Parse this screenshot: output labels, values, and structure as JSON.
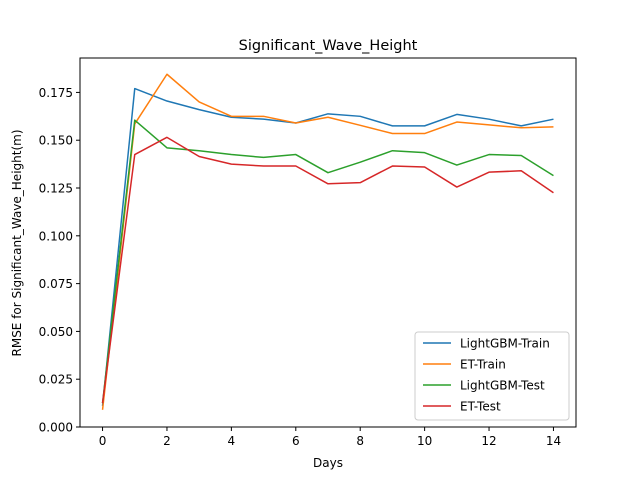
{
  "chart_data": {
    "type": "line",
    "title": "Significant_Wave_Height",
    "xlabel": "Days",
    "ylabel": "RMSE for Significant_Wave_Height(m)",
    "xlim": [
      -0.7,
      14.7
    ],
    "ylim": [
      0,
      0.193
    ],
    "xticks": [
      0,
      2,
      4,
      6,
      8,
      10,
      12,
      14
    ],
    "xtick_labels": [
      "0",
      "2",
      "4",
      "6",
      "8",
      "10",
      "12",
      "14"
    ],
    "yticks": [
      0,
      0.025,
      0.05,
      0.075,
      0.1,
      0.125,
      0.15,
      0.175
    ],
    "ytick_labels": [
      "0.000",
      "0.025",
      "0.050",
      "0.075",
      "0.100",
      "0.125",
      "0.150",
      "0.175"
    ],
    "grid": false,
    "legend_position": "lower-right",
    "x": [
      0,
      1,
      2,
      3,
      4,
      5,
      6,
      7,
      8,
      9,
      10,
      11,
      12,
      13,
      14
    ],
    "series": [
      {
        "name": "LightGBM-Train",
        "color": "#1f77b4",
        "values": [
          0.011,
          0.177,
          0.1705,
          0.166,
          0.162,
          0.161,
          0.159,
          0.1638,
          0.1625,
          0.1575,
          0.1575,
          0.1635,
          0.161,
          0.1575,
          0.161
        ]
      },
      {
        "name": "ET-Train",
        "color": "#ff7f0e",
        "values": [
          0.009,
          0.1585,
          0.1845,
          0.17,
          0.1625,
          0.1625,
          0.159,
          0.162,
          0.1578,
          0.1535,
          0.1535,
          0.1595,
          0.158,
          0.1565,
          0.157
        ]
      },
      {
        "name": "LightGBM-Test",
        "color": "#2ca02c",
        "values": [
          0.0125,
          0.1605,
          0.146,
          0.1445,
          0.1425,
          0.141,
          0.1425,
          0.133,
          0.1385,
          0.1445,
          0.1435,
          0.137,
          0.1425,
          0.142,
          0.1315
        ]
      },
      {
        "name": "ET-Test",
        "color": "#d62728",
        "values": [
          0.0125,
          0.1425,
          0.1515,
          0.1415,
          0.1375,
          0.1365,
          0.1365,
          0.1272,
          0.1278,
          0.1365,
          0.136,
          0.1255,
          0.1333,
          0.134,
          0.1225
        ]
      }
    ]
  }
}
